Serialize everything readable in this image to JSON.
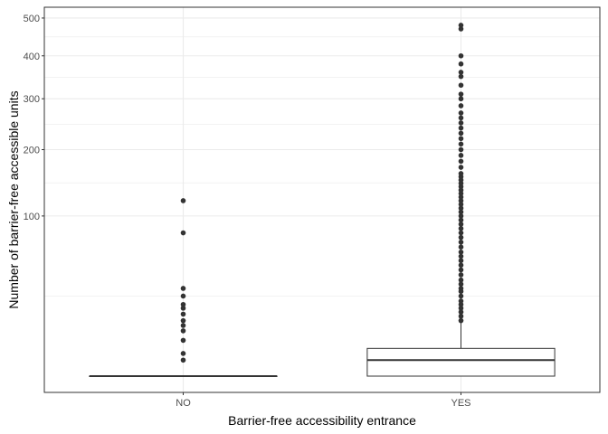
{
  "chart_data": {
    "type": "box",
    "title": "",
    "xlabel": "Barrier-free accessibility entrance",
    "ylabel": "Number of barrier-free accessible units",
    "y_scale": "sqrt",
    "ylim": [
      0,
      510
    ],
    "y_ticks": [
      100,
      200,
      300,
      400,
      500
    ],
    "grid": true,
    "categories": [
      "NO",
      "YES"
    ],
    "boxes": [
      {
        "category": "NO",
        "min": 0,
        "q1": 0,
        "median": 0,
        "q3": 0,
        "max": 0,
        "outliers": [
          1,
          2,
          5,
          8,
          10,
          12,
          15,
          18,
          20,
          25,
          30,
          80,
          120
        ]
      },
      {
        "category": "YES",
        "min": 0,
        "q1": 0,
        "median": 1,
        "q3": 3,
        "max": 11,
        "outliers": [
          12,
          14,
          16,
          18,
          20,
          22,
          25,
          28,
          30,
          33,
          36,
          40,
          44,
          48,
          52,
          56,
          60,
          65,
          70,
          75,
          80,
          85,
          90,
          95,
          100,
          105,
          110,
          115,
          120,
          125,
          130,
          135,
          140,
          145,
          150,
          155,
          160,
          170,
          180,
          190,
          200,
          210,
          220,
          230,
          240,
          250,
          260,
          270,
          285,
          300,
          310,
          330,
          350,
          360,
          380,
          400,
          470,
          480
        ]
      }
    ],
    "colors": {
      "box_fill": "#ffffff",
      "stroke": "#333333",
      "grid": "#ebebeb",
      "panel_border": "#333333"
    }
  }
}
